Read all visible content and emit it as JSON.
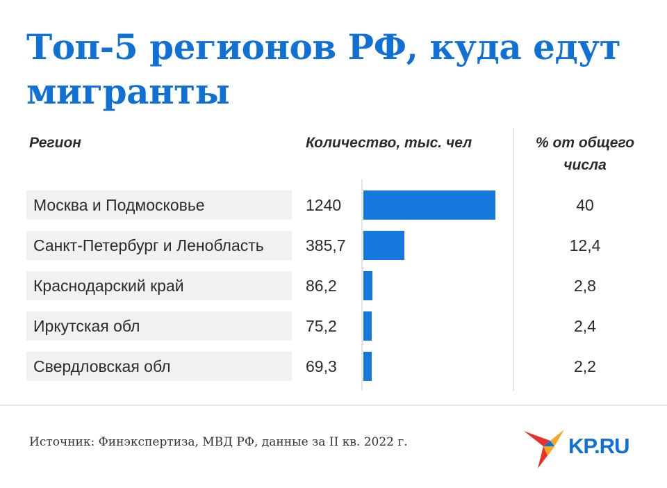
{
  "title": "Топ-5 регионов РФ, куда едут мигранты",
  "headers": {
    "region": "Регион",
    "quantity": "Количество, тыс. чел",
    "percent": "% от общего числа"
  },
  "chart_data": {
    "type": "bar",
    "orientation": "horizontal",
    "categories": [
      "Москва и Подмосковье",
      "Санкт-Петербург и Ленобласть",
      "Краснодарский край",
      "Иркутская обл",
      "Свердловская обл"
    ],
    "values": [
      1240,
      385.7,
      86.2,
      75.2,
      69.3
    ],
    "value_labels": [
      "1240",
      "385,7",
      "86,2",
      "75,2",
      "69,3"
    ],
    "percent_labels": [
      "40",
      "12,4",
      "2,8",
      "2,4",
      "2,2"
    ],
    "title": "Топ-5 регионов РФ, куда едут мигранты",
    "xlabel": "Количество, тыс. чел",
    "grid": false,
    "bar_color": "#1478dc"
  },
  "source": "Источник: Финэкспертиза, МВД РФ, данные за II кв. 2022 г.",
  "logo": {
    "text": "KP.RU",
    "colors": [
      "#1070d4",
      "#e8312b",
      "#f6a623"
    ]
  },
  "colors": {
    "title": "#1070d4",
    "row_bg": "#f1f1f1",
    "bar": "#1478dc"
  }
}
